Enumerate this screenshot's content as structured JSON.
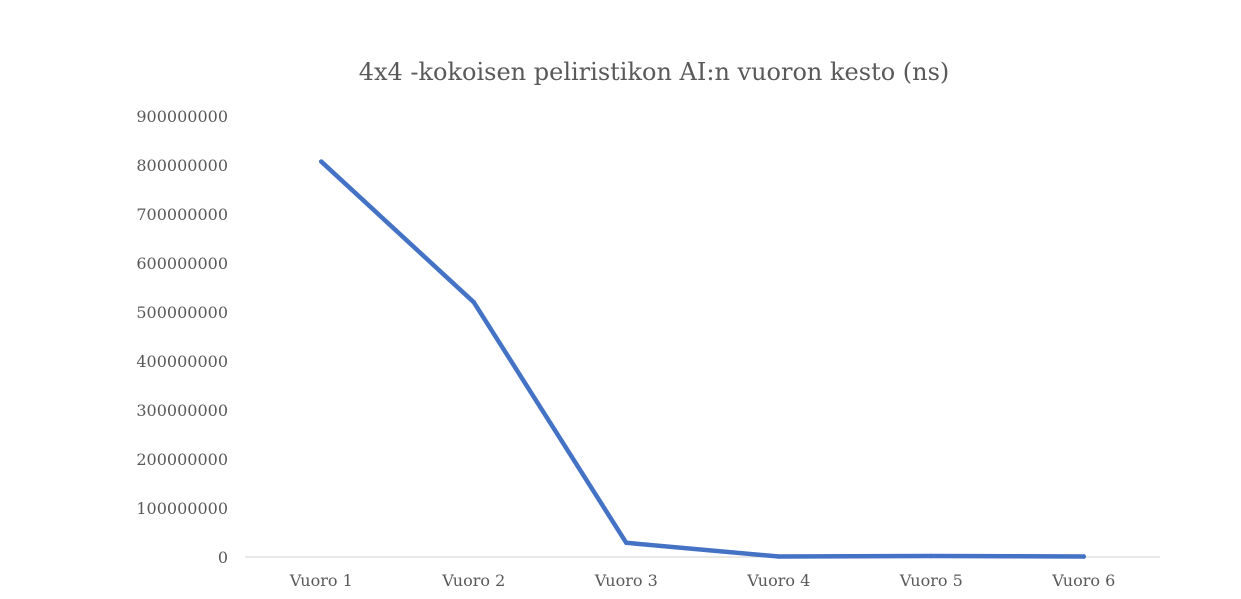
{
  "chart_data": {
    "type": "line",
    "title": "4x4 -kokoisen peliristikon AI:n vuoron kesto (ns)",
    "categories": [
      "Vuoro 1",
      "Vuoro 2",
      "Vuoro 3",
      "Vuoro 4",
      "Vuoro 5",
      "Vuoro 6"
    ],
    "series": [
      {
        "values": [
          807000000,
          520000000,
          29000000,
          1000000,
          2000000,
          1000000
        ]
      }
    ],
    "y_ticks": [
      "0",
      "100000000",
      "200000000",
      "300000000",
      "400000000",
      "500000000",
      "600000000",
      "700000000",
      "800000000",
      "900000000"
    ],
    "ylim": [
      0,
      900000000
    ],
    "grid": false,
    "legend": "none",
    "colors": {
      "line": "#4472c4",
      "axis": "#d9d9d9",
      "text": "#595959"
    }
  }
}
